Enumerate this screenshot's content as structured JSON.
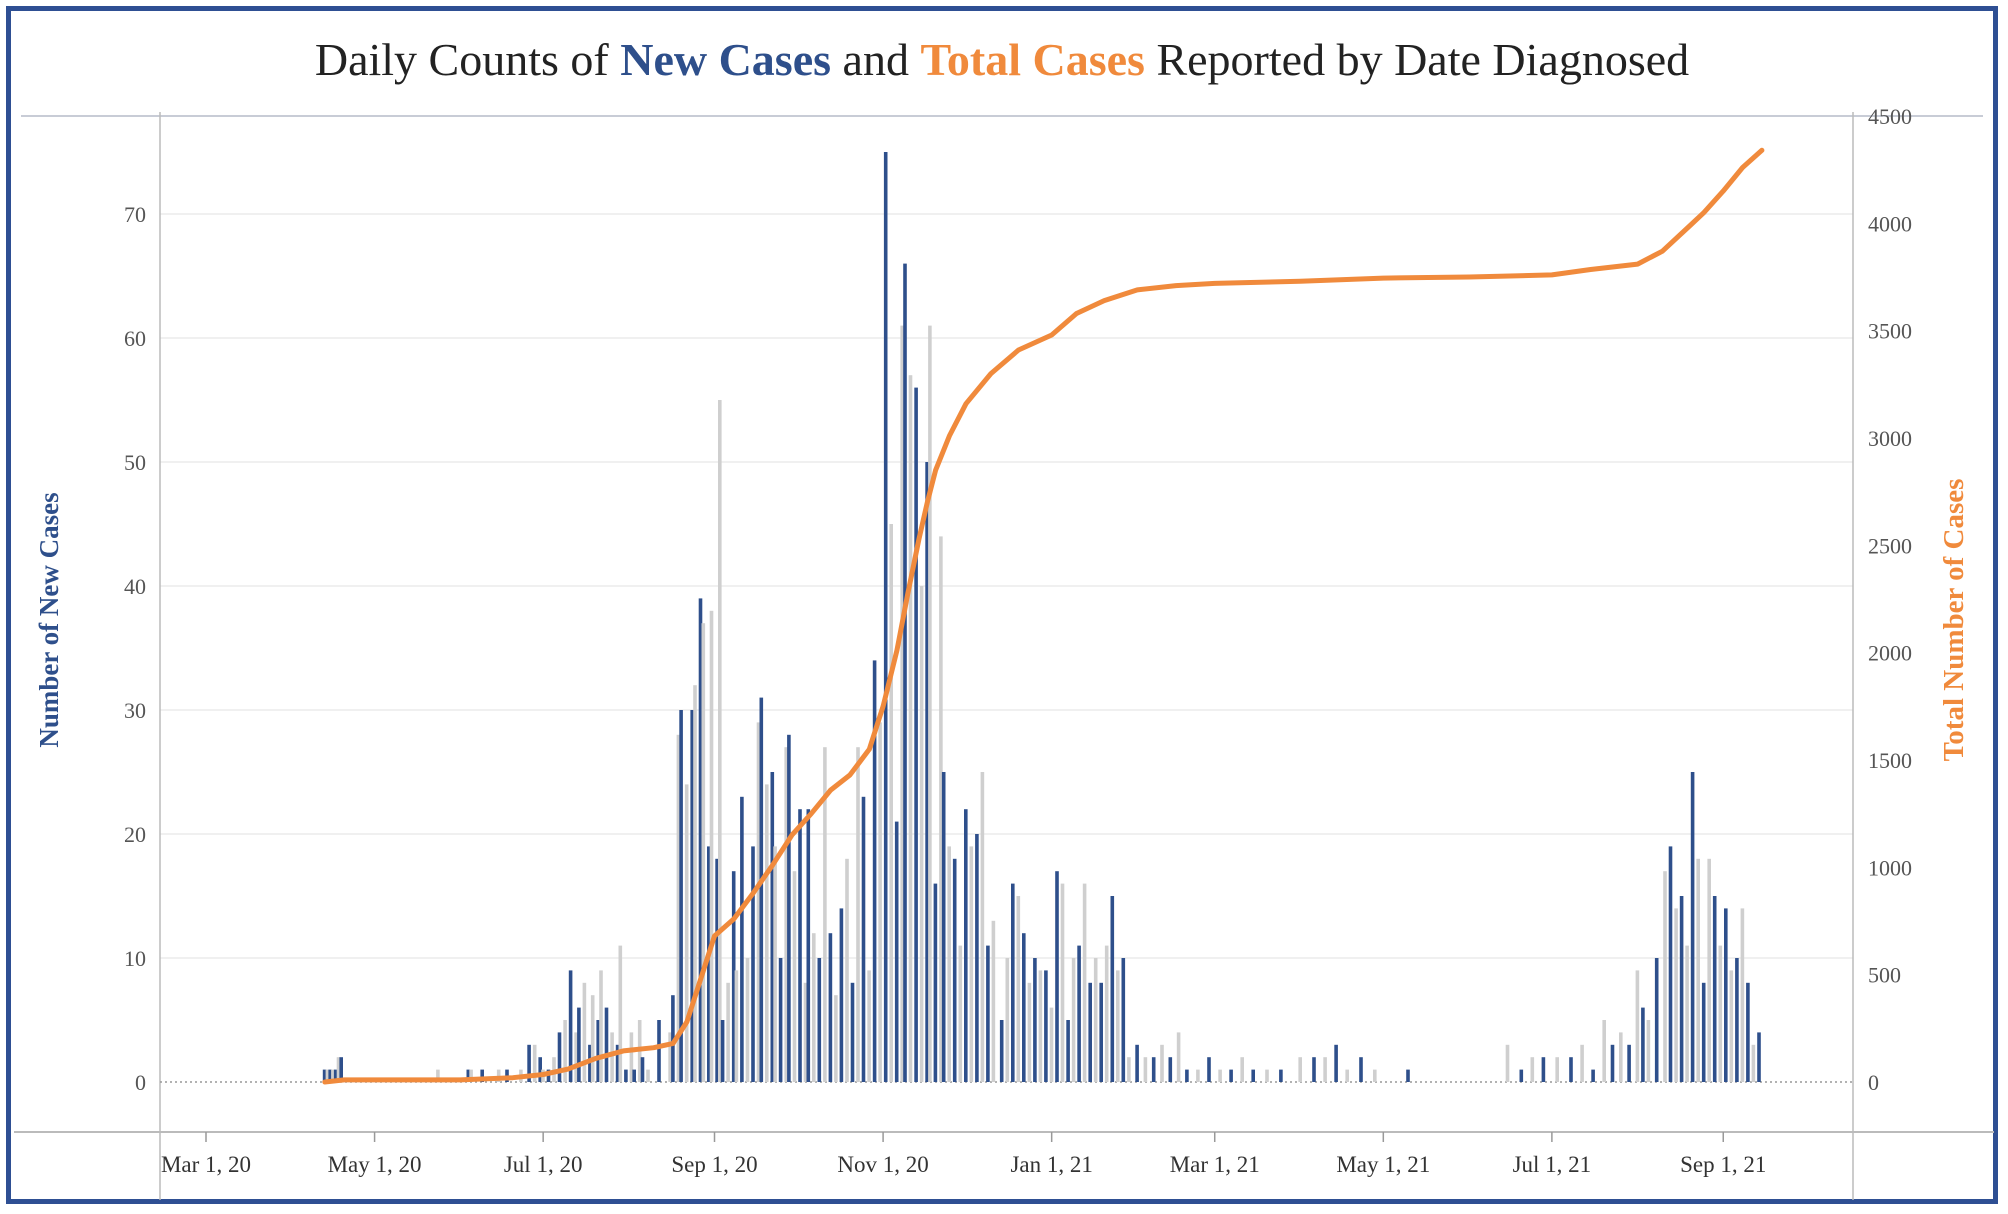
{
  "title": {
    "part1": "Daily Counts of ",
    "new_cases": "New Cases",
    "part2": " and ",
    "total_cases": "Total Cases",
    "part3": " Reported by Date Diagnosed"
  },
  "colors": {
    "border": "#2e4f93",
    "new_cases": "#2e4f8b",
    "total_cases": "#f08a3c",
    "bar_alt": "#cfcfcf"
  },
  "chart_data": {
    "type": "bar+line",
    "xlabel": "",
    "ylabel_left": "Number of New Cases",
    "ylabel_right": "Total Number of Cases",
    "ylim_left": [
      0,
      77
    ],
    "ylim_right": [
      0,
      4500
    ],
    "yticks_left": [
      0,
      10,
      20,
      30,
      40,
      50,
      60,
      70
    ],
    "yticks_right": [
      0,
      500,
      1000,
      1500,
      2000,
      2500,
      3000,
      3500,
      4000,
      4500
    ],
    "xticks": [
      {
        "date": "2020-03-01",
        "label": "Mar 1, 20"
      },
      {
        "date": "2020-05-01",
        "label": "May 1, 20"
      },
      {
        "date": "2020-07-01",
        "label": "Jul 1, 20"
      },
      {
        "date": "2020-09-01",
        "label": "Sep 1, 20"
      },
      {
        "date": "2020-11-01",
        "label": "Nov 1, 20"
      },
      {
        "date": "2021-01-01",
        "label": "Jan 1, 21"
      },
      {
        "date": "2021-03-01",
        "label": "Mar 1, 21"
      },
      {
        "date": "2021-05-01",
        "label": "May 1, 21"
      },
      {
        "date": "2021-07-01",
        "label": "Jul 1, 21"
      },
      {
        "date": "2021-09-01",
        "label": "Sep 1, 21"
      }
    ],
    "x_range": [
      "2020-03-01",
      "2021-11-01"
    ],
    "grid": true,
    "series": [
      {
        "name": "New Cases",
        "type": "bar",
        "color": "#2e4f8b",
        "values": [
          [
            "2020-04-13",
            1
          ],
          [
            "2020-04-14",
            1
          ],
          [
            "2020-04-15",
            1
          ],
          [
            "2020-04-16",
            1
          ],
          [
            "2020-04-17",
            1
          ],
          [
            "2020-04-18",
            2
          ],
          [
            "2020-04-19",
            2
          ],
          [
            "2020-05-24",
            1
          ],
          [
            "2020-06-04",
            1
          ],
          [
            "2020-06-05",
            1
          ],
          [
            "2020-06-09",
            1
          ],
          [
            "2020-06-15",
            1
          ],
          [
            "2020-06-18",
            1
          ],
          [
            "2020-06-23",
            1
          ],
          [
            "2020-06-26",
            3
          ],
          [
            "2020-06-28",
            3
          ],
          [
            "2020-06-30",
            2
          ],
          [
            "2020-07-01",
            1
          ],
          [
            "2020-07-03",
            1
          ],
          [
            "2020-07-05",
            2
          ],
          [
            "2020-07-07",
            4
          ],
          [
            "2020-07-09",
            5
          ],
          [
            "2020-07-11",
            9
          ],
          [
            "2020-07-13",
            4
          ],
          [
            "2020-07-14",
            6
          ],
          [
            "2020-07-16",
            8
          ],
          [
            "2020-07-18",
            3
          ],
          [
            "2020-07-19",
            7
          ],
          [
            "2020-07-21",
            5
          ],
          [
            "2020-07-22",
            9
          ],
          [
            "2020-07-24",
            6
          ],
          [
            "2020-07-26",
            4
          ],
          [
            "2020-07-28",
            3
          ],
          [
            "2020-07-29",
            11
          ],
          [
            "2020-07-31",
            1
          ],
          [
            "2020-08-02",
            4
          ],
          [
            "2020-08-03",
            1
          ],
          [
            "2020-08-05",
            5
          ],
          [
            "2020-08-06",
            2
          ],
          [
            "2020-08-08",
            1
          ],
          [
            "2020-08-12",
            5
          ],
          [
            "2020-08-16",
            4
          ],
          [
            "2020-08-17",
            7
          ],
          [
            "2020-08-19",
            28
          ],
          [
            "2020-08-20",
            30
          ],
          [
            "2020-08-22",
            24
          ],
          [
            "2020-08-24",
            30
          ],
          [
            "2020-08-25",
            32
          ],
          [
            "2020-08-27",
            39
          ],
          [
            "2020-08-28",
            37
          ],
          [
            "2020-08-30",
            19
          ],
          [
            "2020-08-31",
            38
          ],
          [
            "2020-09-02",
            18
          ],
          [
            "2020-09-03",
            55
          ],
          [
            "2020-09-04",
            5
          ],
          [
            "2020-09-06",
            8
          ],
          [
            "2020-09-08",
            17
          ],
          [
            "2020-09-09",
            9
          ],
          [
            "2020-09-11",
            23
          ],
          [
            "2020-09-13",
            10
          ],
          [
            "2020-09-15",
            19
          ],
          [
            "2020-09-17",
            29
          ],
          [
            "2020-09-18",
            31
          ],
          [
            "2020-09-20",
            24
          ],
          [
            "2020-09-22",
            25
          ],
          [
            "2020-09-23",
            19
          ],
          [
            "2020-09-25",
            10
          ],
          [
            "2020-09-27",
            27
          ],
          [
            "2020-09-28",
            28
          ],
          [
            "2020-09-30",
            17
          ],
          [
            "2020-10-02",
            22
          ],
          [
            "2020-10-04",
            8
          ],
          [
            "2020-10-05",
            22
          ],
          [
            "2020-10-07",
            12
          ],
          [
            "2020-10-09",
            10
          ],
          [
            "2020-10-11",
            27
          ],
          [
            "2020-10-13",
            12
          ],
          [
            "2020-10-15",
            7
          ],
          [
            "2020-10-17",
            14
          ],
          [
            "2020-10-19",
            18
          ],
          [
            "2020-10-21",
            8
          ],
          [
            "2020-10-23",
            27
          ],
          [
            "2020-10-25",
            23
          ],
          [
            "2020-10-27",
            9
          ],
          [
            "2020-10-29",
            34
          ],
          [
            "2020-10-31",
            29
          ],
          [
            "2020-11-02",
            75
          ],
          [
            "2020-11-04",
            45
          ],
          [
            "2020-11-06",
            21
          ],
          [
            "2020-11-08",
            61
          ],
          [
            "2020-11-09",
            66
          ],
          [
            "2020-11-11",
            57
          ],
          [
            "2020-11-13",
            56
          ],
          [
            "2020-11-15",
            40
          ],
          [
            "2020-11-17",
            50
          ],
          [
            "2020-11-18",
            61
          ],
          [
            "2020-11-20",
            16
          ],
          [
            "2020-11-22",
            44
          ],
          [
            "2020-11-23",
            25
          ],
          [
            "2020-11-25",
            19
          ],
          [
            "2020-11-27",
            18
          ],
          [
            "2020-11-29",
            11
          ],
          [
            "2020-12-01",
            22
          ],
          [
            "2020-12-03",
            19
          ],
          [
            "2020-12-05",
            20
          ],
          [
            "2020-12-07",
            25
          ],
          [
            "2020-12-09",
            11
          ],
          [
            "2020-12-11",
            13
          ],
          [
            "2020-12-14",
            5
          ],
          [
            "2020-12-16",
            10
          ],
          [
            "2020-12-18",
            16
          ],
          [
            "2020-12-20",
            15
          ],
          [
            "2020-12-22",
            12
          ],
          [
            "2020-12-24",
            8
          ],
          [
            "2020-12-26",
            10
          ],
          [
            "2020-12-28",
            9
          ],
          [
            "2020-12-30",
            9
          ],
          [
            "2021-01-01",
            6
          ],
          [
            "2021-01-03",
            17
          ],
          [
            "2021-01-05",
            16
          ],
          [
            "2021-01-07",
            5
          ],
          [
            "2021-01-09",
            10
          ],
          [
            "2021-01-11",
            11
          ],
          [
            "2021-01-13",
            16
          ],
          [
            "2021-01-15",
            8
          ],
          [
            "2021-01-17",
            10
          ],
          [
            "2021-01-19",
            8
          ],
          [
            "2021-01-21",
            11
          ],
          [
            "2021-01-23",
            15
          ],
          [
            "2021-01-25",
            9
          ],
          [
            "2021-01-27",
            10
          ],
          [
            "2021-01-29",
            2
          ],
          [
            "2021-02-01",
            3
          ],
          [
            "2021-02-04",
            2
          ],
          [
            "2021-02-07",
            2
          ],
          [
            "2021-02-10",
            3
          ],
          [
            "2021-02-13",
            2
          ],
          [
            "2021-02-16",
            4
          ],
          [
            "2021-02-19",
            1
          ],
          [
            "2021-02-23",
            1
          ],
          [
            "2021-02-27",
            2
          ],
          [
            "2021-03-03",
            1
          ],
          [
            "2021-03-07",
            1
          ],
          [
            "2021-03-11",
            2
          ],
          [
            "2021-03-15",
            1
          ],
          [
            "2021-03-20",
            1
          ],
          [
            "2021-03-25",
            1
          ],
          [
            "2021-04-01",
            2
          ],
          [
            "2021-04-06",
            2
          ],
          [
            "2021-04-10",
            2
          ],
          [
            "2021-04-14",
            3
          ],
          [
            "2021-04-18",
            1
          ],
          [
            "2021-04-23",
            2
          ],
          [
            "2021-04-28",
            1
          ],
          [
            "2021-05-10",
            1
          ],
          [
            "2021-06-15",
            3
          ],
          [
            "2021-06-20",
            1
          ],
          [
            "2021-06-24",
            2
          ],
          [
            "2021-06-28",
            2
          ],
          [
            "2021-07-03",
            2
          ],
          [
            "2021-07-08",
            2
          ],
          [
            "2021-07-12",
            3
          ],
          [
            "2021-07-16",
            1
          ],
          [
            "2021-07-20",
            5
          ],
          [
            "2021-07-23",
            3
          ],
          [
            "2021-07-26",
            4
          ],
          [
            "2021-07-29",
            3
          ],
          [
            "2021-08-01",
            9
          ],
          [
            "2021-08-03",
            6
          ],
          [
            "2021-08-05",
            5
          ],
          [
            "2021-08-08",
            10
          ],
          [
            "2021-08-11",
            17
          ],
          [
            "2021-08-13",
            19
          ],
          [
            "2021-08-15",
            14
          ],
          [
            "2021-08-17",
            15
          ],
          [
            "2021-08-19",
            11
          ],
          [
            "2021-08-21",
            25
          ],
          [
            "2021-08-23",
            18
          ],
          [
            "2021-08-25",
            8
          ],
          [
            "2021-08-27",
            18
          ],
          [
            "2021-08-29",
            15
          ],
          [
            "2021-08-31",
            11
          ],
          [
            "2021-09-02",
            14
          ],
          [
            "2021-09-04",
            9
          ],
          [
            "2021-09-06",
            10
          ],
          [
            "2021-09-08",
            14
          ],
          [
            "2021-09-10",
            8
          ],
          [
            "2021-09-12",
            3
          ],
          [
            "2021-09-14",
            4
          ]
        ]
      },
      {
        "name": "Total Cases",
        "type": "line",
        "color": "#f08a3c",
        "values": [
          [
            "2020-04-13",
            0
          ],
          [
            "2020-04-20",
            10
          ],
          [
            "2020-05-15",
            10
          ],
          [
            "2020-06-01",
            10
          ],
          [
            "2020-06-20",
            20
          ],
          [
            "2020-07-01",
            35
          ],
          [
            "2020-07-10",
            60
          ],
          [
            "2020-07-20",
            110
          ],
          [
            "2020-07-30",
            145
          ],
          [
            "2020-08-10",
            160
          ],
          [
            "2020-08-17",
            180
          ],
          [
            "2020-08-22",
            280
          ],
          [
            "2020-08-29",
            560
          ],
          [
            "2020-09-01",
            680
          ],
          [
            "2020-09-08",
            760
          ],
          [
            "2020-09-15",
            880
          ],
          [
            "2020-09-22",
            1010
          ],
          [
            "2020-09-29",
            1150
          ],
          [
            "2020-10-06",
            1250
          ],
          [
            "2020-10-13",
            1360
          ],
          [
            "2020-10-20",
            1430
          ],
          [
            "2020-10-27",
            1550
          ],
          [
            "2020-11-01",
            1750
          ],
          [
            "2020-11-06",
            2010
          ],
          [
            "2020-11-10",
            2280
          ],
          [
            "2020-11-14",
            2530
          ],
          [
            "2020-11-17",
            2700
          ],
          [
            "2020-11-20",
            2850
          ],
          [
            "2020-11-25",
            3010
          ],
          [
            "2020-12-01",
            3160
          ],
          [
            "2020-12-10",
            3300
          ],
          [
            "2020-12-20",
            3410
          ],
          [
            "2021-01-01",
            3480
          ],
          [
            "2021-01-10",
            3580
          ],
          [
            "2021-01-20",
            3640
          ],
          [
            "2021-02-01",
            3690
          ],
          [
            "2021-02-15",
            3710
          ],
          [
            "2021-03-01",
            3720
          ],
          [
            "2021-04-01",
            3730
          ],
          [
            "2021-05-01",
            3745
          ],
          [
            "2021-06-01",
            3750
          ],
          [
            "2021-07-01",
            3760
          ],
          [
            "2021-07-15",
            3785
          ],
          [
            "2021-08-01",
            3810
          ],
          [
            "2021-08-10",
            3870
          ],
          [
            "2021-08-20",
            3990
          ],
          [
            "2021-08-25",
            4050
          ],
          [
            "2021-09-01",
            4150
          ],
          [
            "2021-09-08",
            4260
          ],
          [
            "2021-09-15",
            4340
          ]
        ]
      }
    ]
  }
}
